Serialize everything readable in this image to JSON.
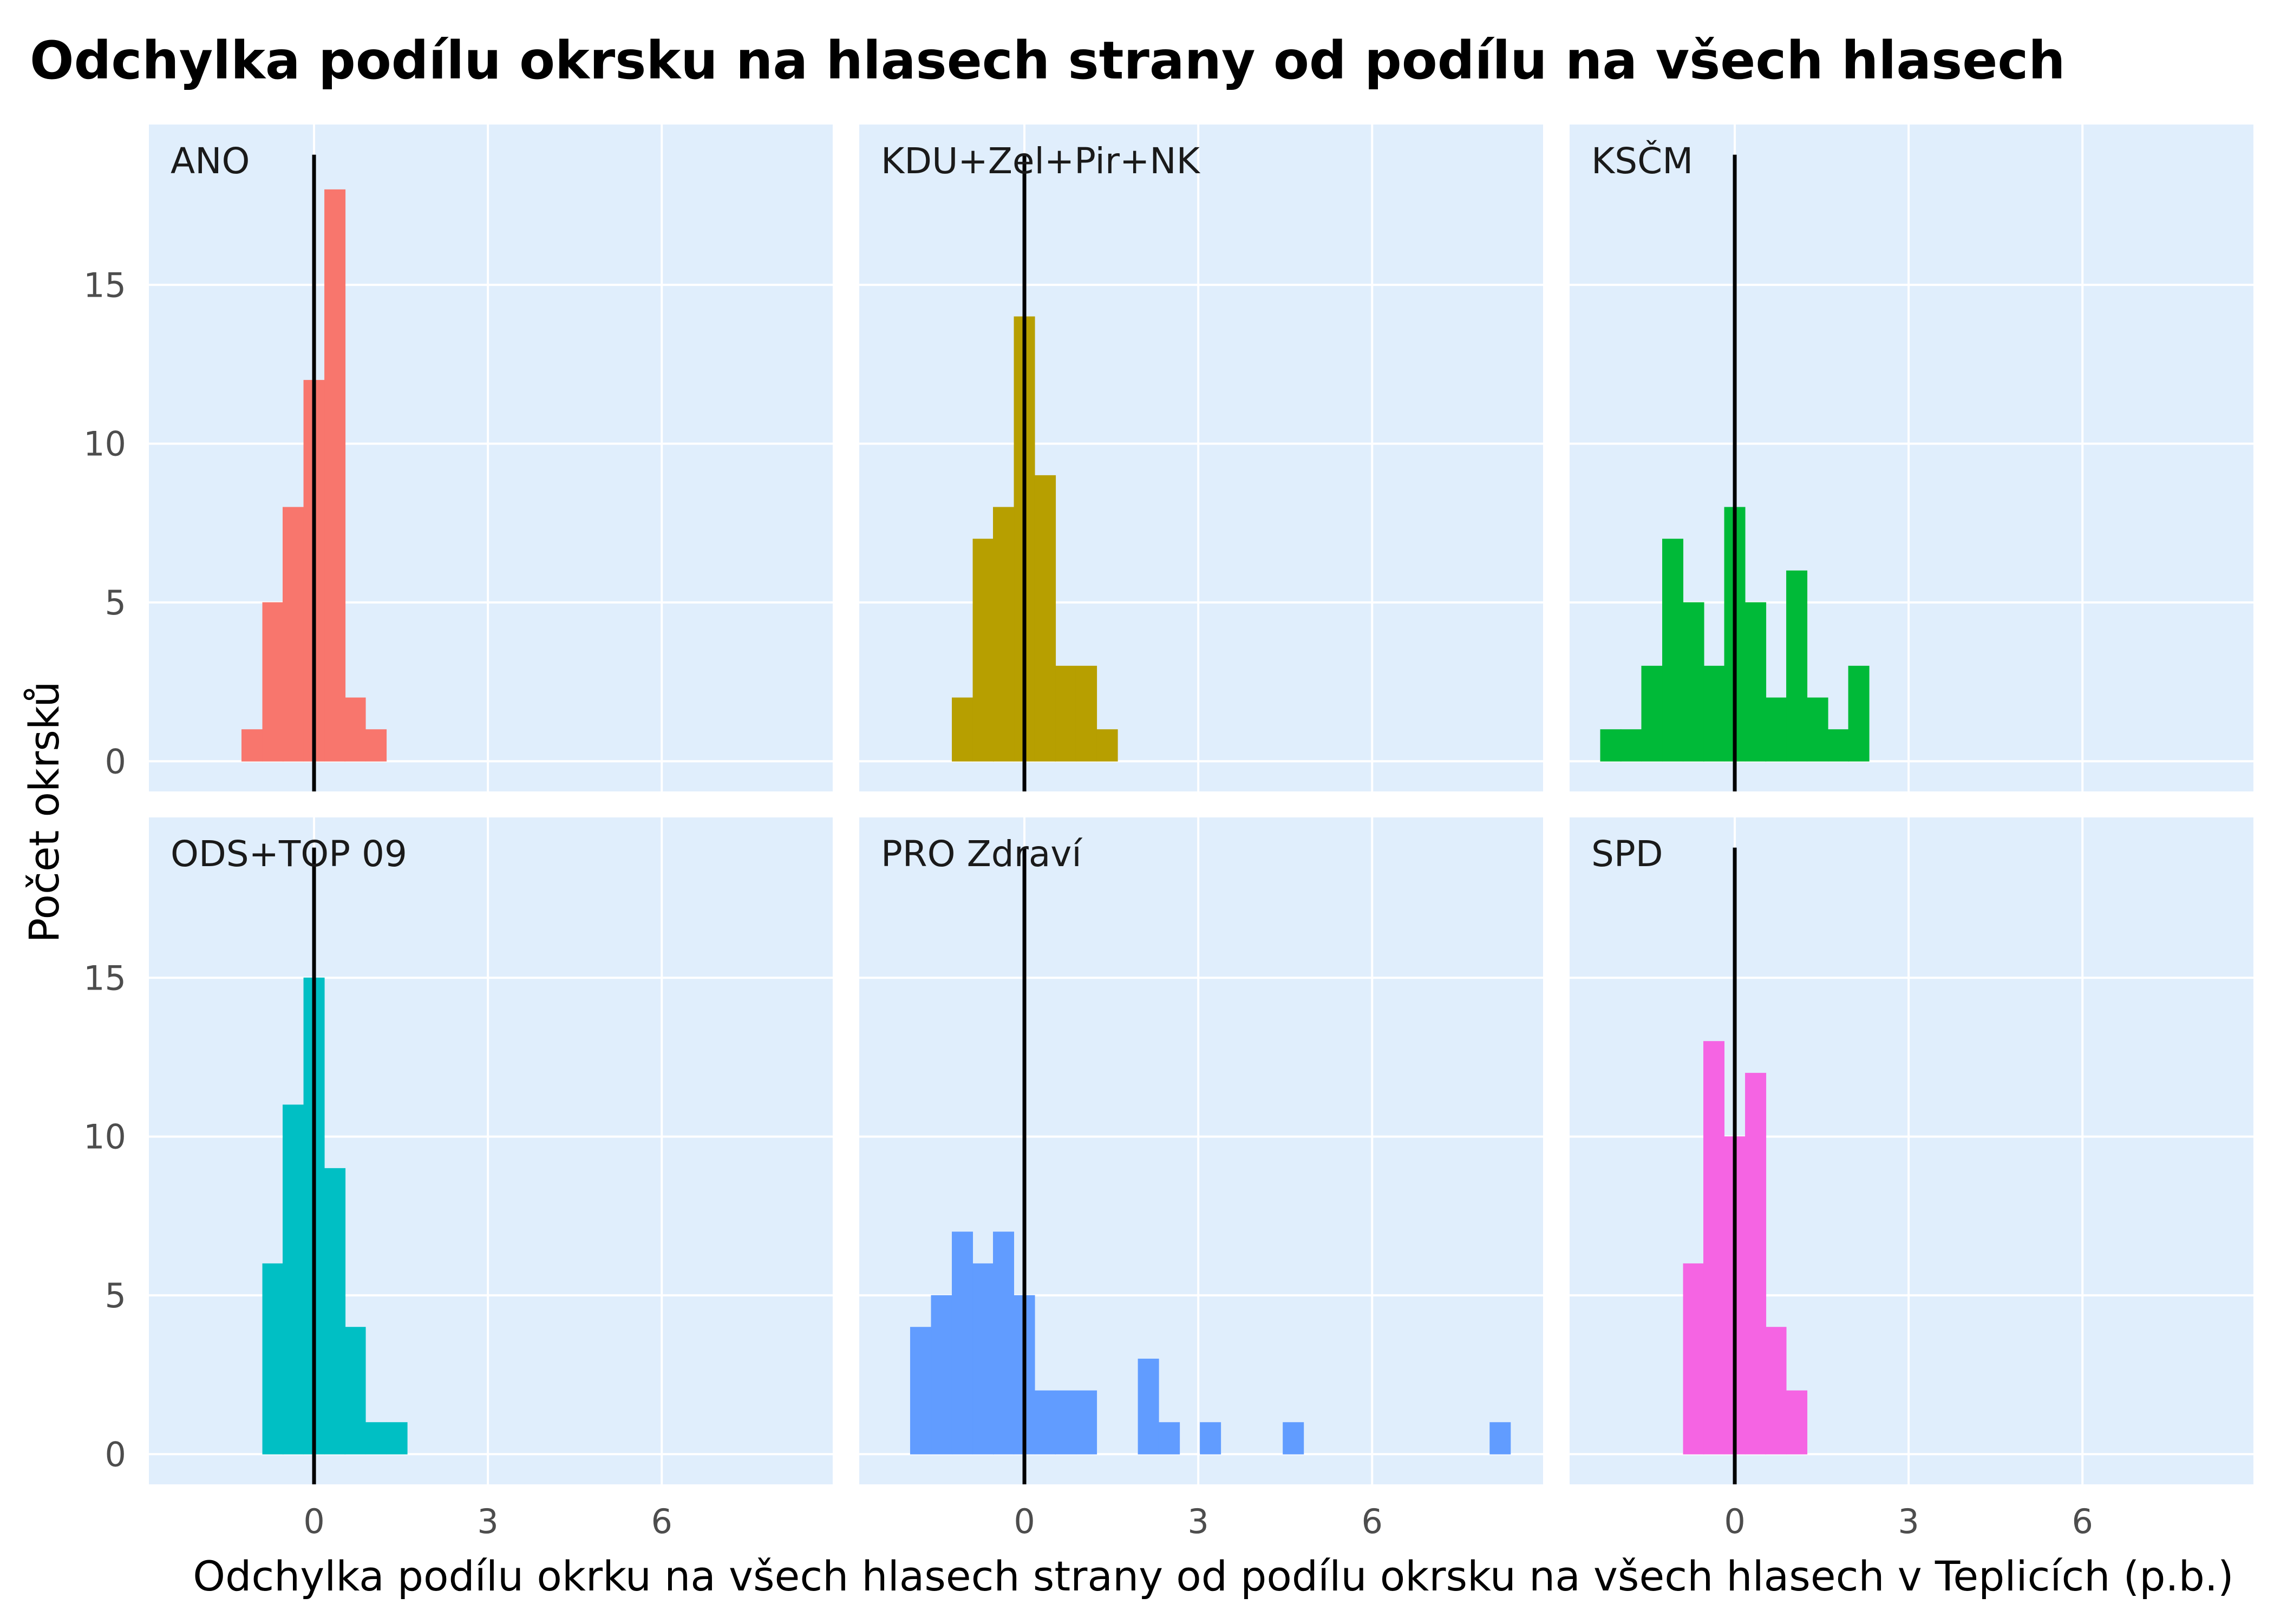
{
  "chart_data": {
    "type": "bar",
    "title": "Odchylka podílu okrsku na hlasech strany od podílu na všech hlasech",
    "xlabel": "Odchylka podílu okrku na všech hlasech strany od podílu okrsku na všech hlasech v Teplicích (p.b.)",
    "ylabel": "Počet okrsků",
    "xlim": [
      -2.85,
      8.95
    ],
    "ylim": [
      -0.95,
      20.05
    ],
    "x_ticks": [
      0,
      3,
      6
    ],
    "x_tick_labels": [
      "0",
      "3",
      "6"
    ],
    "y_ticks": [
      0,
      5,
      10,
      15
    ],
    "y_tick_labels": [
      "0",
      "5",
      "10",
      "15"
    ],
    "bin_width": 0.357,
    "reference_line_x": 0,
    "grid": true,
    "legend": "none",
    "panel_background": "#e0eefc",
    "facets": [
      {
        "label": "ANO",
        "color": "#f8766d",
        "bins": [
          {
            "x": -1.07,
            "count": 1
          },
          {
            "x": -0.71,
            "count": 5
          },
          {
            "x": -0.36,
            "count": 8
          },
          {
            "x": 0.0,
            "count": 12
          },
          {
            "x": 0.36,
            "count": 18
          },
          {
            "x": 0.71,
            "count": 2
          },
          {
            "x": 1.07,
            "count": 1
          }
        ]
      },
      {
        "label": "KDU+Zel+Pir+NK",
        "color": "#b79f00",
        "bins": [
          {
            "x": -1.07,
            "count": 2
          },
          {
            "x": -0.71,
            "count": 7
          },
          {
            "x": -0.36,
            "count": 8
          },
          {
            "x": 0.0,
            "count": 14
          },
          {
            "x": 0.36,
            "count": 9
          },
          {
            "x": 0.71,
            "count": 3
          },
          {
            "x": 1.07,
            "count": 3
          },
          {
            "x": 1.43,
            "count": 1
          }
        ]
      },
      {
        "label": "KSČM",
        "color": "#00ba38",
        "bins": [
          {
            "x": -2.14,
            "count": 1
          },
          {
            "x": -1.79,
            "count": 1
          },
          {
            "x": -1.43,
            "count": 3
          },
          {
            "x": -1.07,
            "count": 7
          },
          {
            "x": -0.71,
            "count": 5
          },
          {
            "x": -0.36,
            "count": 3
          },
          {
            "x": 0.0,
            "count": 8
          },
          {
            "x": 0.36,
            "count": 5
          },
          {
            "x": 0.71,
            "count": 2
          },
          {
            "x": 1.07,
            "count": 6
          },
          {
            "x": 1.43,
            "count": 2
          },
          {
            "x": 1.79,
            "count": 1
          },
          {
            "x": 2.14,
            "count": 3
          }
        ]
      },
      {
        "label": "ODS+TOP 09",
        "color": "#00bfc4",
        "bins": [
          {
            "x": -0.71,
            "count": 6
          },
          {
            "x": -0.36,
            "count": 11
          },
          {
            "x": 0.0,
            "count": 15
          },
          {
            "x": 0.36,
            "count": 9
          },
          {
            "x": 0.71,
            "count": 4
          },
          {
            "x": 1.07,
            "count": 1
          },
          {
            "x": 1.43,
            "count": 1
          }
        ]
      },
      {
        "label": "PRO Zdraví",
        "color": "#619cff",
        "bins": [
          {
            "x": -1.79,
            "count": 4
          },
          {
            "x": -1.43,
            "count": 5
          },
          {
            "x": -1.07,
            "count": 7
          },
          {
            "x": -0.71,
            "count": 6
          },
          {
            "x": -0.36,
            "count": 7
          },
          {
            "x": 0.0,
            "count": 5
          },
          {
            "x": 0.36,
            "count": 2
          },
          {
            "x": 0.71,
            "count": 2
          },
          {
            "x": 1.07,
            "count": 2
          },
          {
            "x": 2.14,
            "count": 3
          },
          {
            "x": 2.5,
            "count": 1
          },
          {
            "x": 3.21,
            "count": 1
          },
          {
            "x": 4.64,
            "count": 1
          },
          {
            "x": 8.21,
            "count": 1
          }
        ]
      },
      {
        "label": "SPD",
        "color": "#f564e3",
        "bins": [
          {
            "x": -0.71,
            "count": 6
          },
          {
            "x": -0.36,
            "count": 13
          },
          {
            "x": 0.0,
            "count": 10
          },
          {
            "x": 0.36,
            "count": 12
          },
          {
            "x": 0.71,
            "count": 4
          },
          {
            "x": 1.07,
            "count": 2
          }
        ]
      }
    ]
  }
}
